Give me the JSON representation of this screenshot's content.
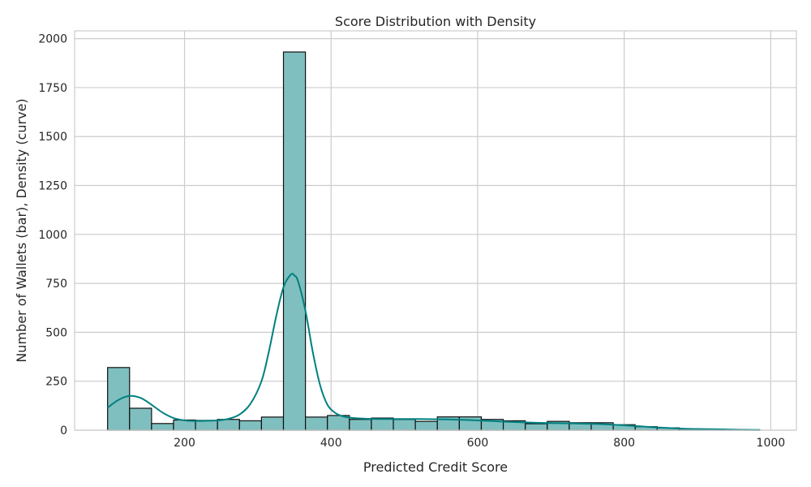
{
  "chart_data": {
    "type": "bar",
    "title": "Score Distribution with Density",
    "xlabel": "Predicted Credit Score",
    "ylabel": "Number of Wallets (bar), Density (curve)",
    "xlim": [
      50,
      1035
    ],
    "ylim": [
      0,
      2040
    ],
    "xticks": [
      200,
      400,
      600,
      800,
      1000
    ],
    "yticks": [
      0,
      250,
      500,
      750,
      1000,
      1250,
      1500,
      1750,
      2000
    ],
    "grid": true,
    "legend": "none",
    "bin_edges": [
      95,
      125,
      155,
      185,
      215,
      245,
      275,
      305,
      335,
      365,
      395,
      425,
      455,
      485,
      515,
      545,
      575,
      605,
      635,
      665,
      695,
      725,
      755,
      785,
      815,
      845,
      875,
      905,
      935,
      965,
      985
    ],
    "counts": [
      320,
      112,
      34,
      52,
      50,
      55,
      48,
      67,
      1932,
      67,
      75,
      55,
      62,
      55,
      45,
      68,
      68,
      55,
      48,
      33,
      45,
      38,
      38,
      28,
      18,
      12,
      6,
      5,
      3,
      2
    ],
    "kde": {
      "x": [
        95,
        110,
        125,
        140,
        155,
        170,
        185,
        200,
        215,
        230,
        245,
        260,
        275,
        290,
        305,
        315,
        325,
        335,
        345,
        350,
        355,
        365,
        375,
        385,
        395,
        405,
        415,
        430,
        450,
        480,
        520,
        560,
        600,
        640,
        680,
        720,
        760,
        800,
        840,
        880,
        920,
        960,
        985
      ],
      "y": [
        115,
        155,
        175,
        165,
        130,
        90,
        62,
        50,
        47,
        48,
        50,
        58,
        80,
        135,
        250,
        400,
        580,
        730,
        795,
        790,
        760,
        610,
        400,
        230,
        130,
        90,
        72,
        62,
        58,
        57,
        57,
        55,
        50,
        43,
        38,
        35,
        32,
        25,
        15,
        8,
        5,
        2,
        1
      ]
    },
    "colors": {
      "bar_fill": "#7fbfbf",
      "bar_edge": "#111111",
      "curve": "#008080",
      "grid": "#cccccc",
      "frame": "#cccccc",
      "text": "#262626"
    }
  }
}
